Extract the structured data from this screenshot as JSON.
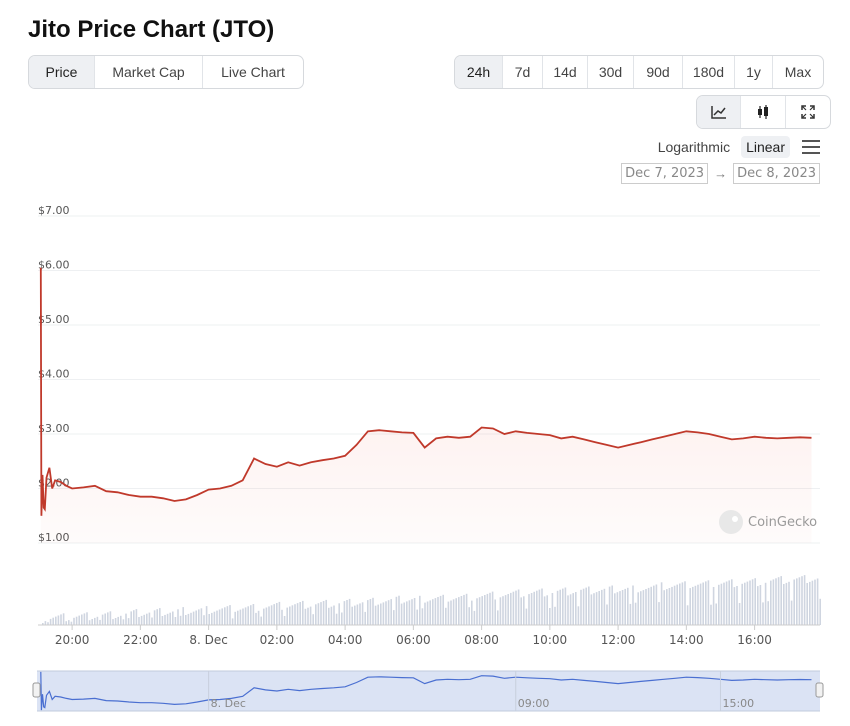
{
  "page": {
    "title": "Jito Price Chart (JTO)"
  },
  "type_tabs": [
    {
      "label": "Price",
      "active": true
    },
    {
      "label": "Market Cap",
      "active": false
    },
    {
      "label": "Live Chart",
      "active": false
    }
  ],
  "range_tabs": [
    {
      "label": "24h",
      "active": true
    },
    {
      "label": "7d",
      "active": false
    },
    {
      "label": "14d",
      "active": false
    },
    {
      "label": "30d",
      "active": false
    },
    {
      "label": "90d",
      "active": false
    },
    {
      "label": "180d",
      "active": false
    },
    {
      "label": "1y",
      "active": false
    },
    {
      "label": "Max",
      "active": false
    }
  ],
  "view_buttons": [
    {
      "icon": "line-chart-icon",
      "glyph": "📈︎",
      "active": true
    },
    {
      "icon": "candlestick-icon",
      "glyph": "▮",
      "active": false
    },
    {
      "icon": "fullscreen-icon",
      "glyph": "⤢",
      "active": false
    }
  ],
  "scale": {
    "logarithmic": "Logarithmic",
    "linear": "Linear",
    "active": "Linear"
  },
  "date_range": {
    "from": "Dec 7, 2023",
    "to": "Dec 8, 2023",
    "arrow": "→"
  },
  "watermark": "CoinGecko",
  "colors": {
    "price_line": "#c0392b",
    "volume_bar": "#cfd5e0",
    "navigator_fill": "#dbe3f4",
    "navigator_line": "#4a6fd1"
  },
  "chart_data": {
    "type": "line",
    "ylim": [
      1,
      7
    ],
    "y_ticks": [
      "$1.00",
      "$2.00",
      "$3.00",
      "$4.00",
      "$5.00",
      "$6.00",
      "$7.00"
    ],
    "x_ticks": [
      "20:00",
      "22:00",
      "8. Dec",
      "02:00",
      "04:00",
      "06:00",
      "08:00",
      "10:00",
      "12:00",
      "14:00",
      "16:00"
    ],
    "navigator_labels": [
      "8. Dec",
      "09:00",
      "15:00"
    ],
    "series": [
      {
        "x": [
          "19:05",
          "19:06",
          "19:08",
          "19:10",
          "19:12",
          "19:15",
          "19:20",
          "19:25",
          "19:30",
          "19:40",
          "19:50",
          "20:00",
          "20:20",
          "20:40",
          "21:00",
          "21:20",
          "21:40",
          "22:00",
          "22:20",
          "22:40",
          "23:00",
          "23:20",
          "23:40",
          "00:00",
          "00:20",
          "00:40",
          "01:00",
          "01:20",
          "01:40",
          "02:00",
          "02:20",
          "02:40",
          "03:00",
          "03:20",
          "03:40",
          "04:00",
          "04:20",
          "04:40",
          "05:00",
          "05:20",
          "05:40",
          "06:00",
          "06:20",
          "06:40",
          "07:00",
          "07:20",
          "07:40",
          "08:00",
          "08:20",
          "08:40",
          "09:00",
          "09:20",
          "09:40",
          "10:00",
          "10:20",
          "10:40",
          "11:00",
          "11:20",
          "11:40",
          "12:00",
          "12:20",
          "12:40",
          "13:00",
          "13:20",
          "13:40",
          "14:00",
          "14:20",
          "14:40",
          "15:00",
          "15:20",
          "15:40",
          "16:00",
          "16:20",
          "16:40",
          "17:00",
          "17:20",
          "17:40"
        ],
        "values": [
          6.05,
          1.5,
          2.25,
          1.65,
          1.62,
          2.2,
          2.38,
          2.0,
          2.15,
          2.12,
          2.05,
          2.0,
          2.02,
          2.05,
          1.95,
          1.93,
          1.88,
          1.85,
          1.85,
          1.82,
          1.77,
          1.8,
          1.88,
          1.98,
          2.0,
          2.05,
          2.15,
          2.55,
          2.45,
          2.4,
          2.48,
          2.42,
          2.48,
          2.52,
          2.55,
          2.6,
          2.8,
          3.05,
          3.07,
          3.05,
          3.03,
          3.02,
          2.75,
          2.92,
          2.95,
          2.93,
          2.95,
          3.12,
          3.1,
          3.0,
          3.05,
          3.02,
          3.0,
          2.98,
          2.92,
          2.95,
          2.9,
          2.85,
          2.8,
          2.75,
          2.8,
          2.85,
          2.9,
          2.95,
          3.0,
          3.05,
          3.03,
          3.0,
          2.95,
          2.9,
          2.92,
          2.95,
          2.93,
          2.92,
          2.93,
          2.94,
          2.93
        ]
      }
    ]
  }
}
